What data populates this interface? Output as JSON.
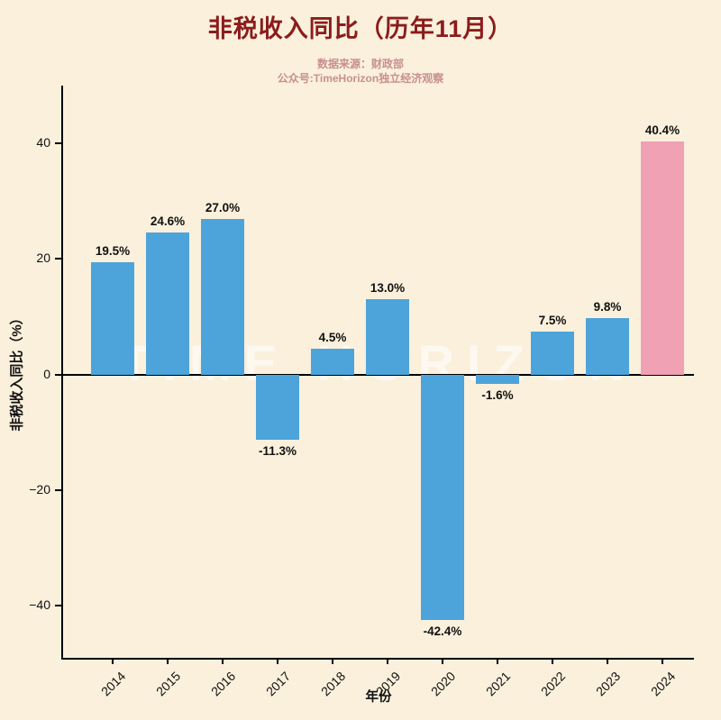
{
  "header": {
    "title": "非税收入同比（历年11月）",
    "subtitle_source": "数据来源：财政部",
    "subtitle_account": "公众号:TimeHorizon独立经济观察"
  },
  "watermark": "TIME HORIZON",
  "colors": {
    "background": "#faf0dc",
    "bar": "#4da4da",
    "highlight": "#f0a1b4",
    "title": "#8b1c1c",
    "subtitle": "#c98f8f",
    "axis": "#000000",
    "label": "#111111"
  },
  "chart_data": {
    "type": "bar",
    "title": "非税收入同比（历年11月）",
    "categories": [
      "2014",
      "2015",
      "2016",
      "2017",
      "2018",
      "2019",
      "2020",
      "2021",
      "2022",
      "2023",
      "2024"
    ],
    "values": [
      19.5,
      24.6,
      27.0,
      -11.3,
      4.5,
      13.0,
      -42.4,
      -1.6,
      7.5,
      9.8,
      40.4
    ],
    "labels": [
      "19.5%",
      "24.6%",
      "27.0%",
      "-11.3%",
      "4.5%",
      "13.0%",
      "-42.4%",
      "-1.6%",
      "7.5%",
      "9.8%",
      "40.4%"
    ],
    "xlabel": "年份",
    "ylabel": "非税收入同比（%）",
    "ylim": [
      -49,
      50
    ],
    "yticks": [
      -40,
      -20,
      0,
      20,
      40
    ],
    "highlight_index": 10,
    "grid": false,
    "legend": "none"
  }
}
